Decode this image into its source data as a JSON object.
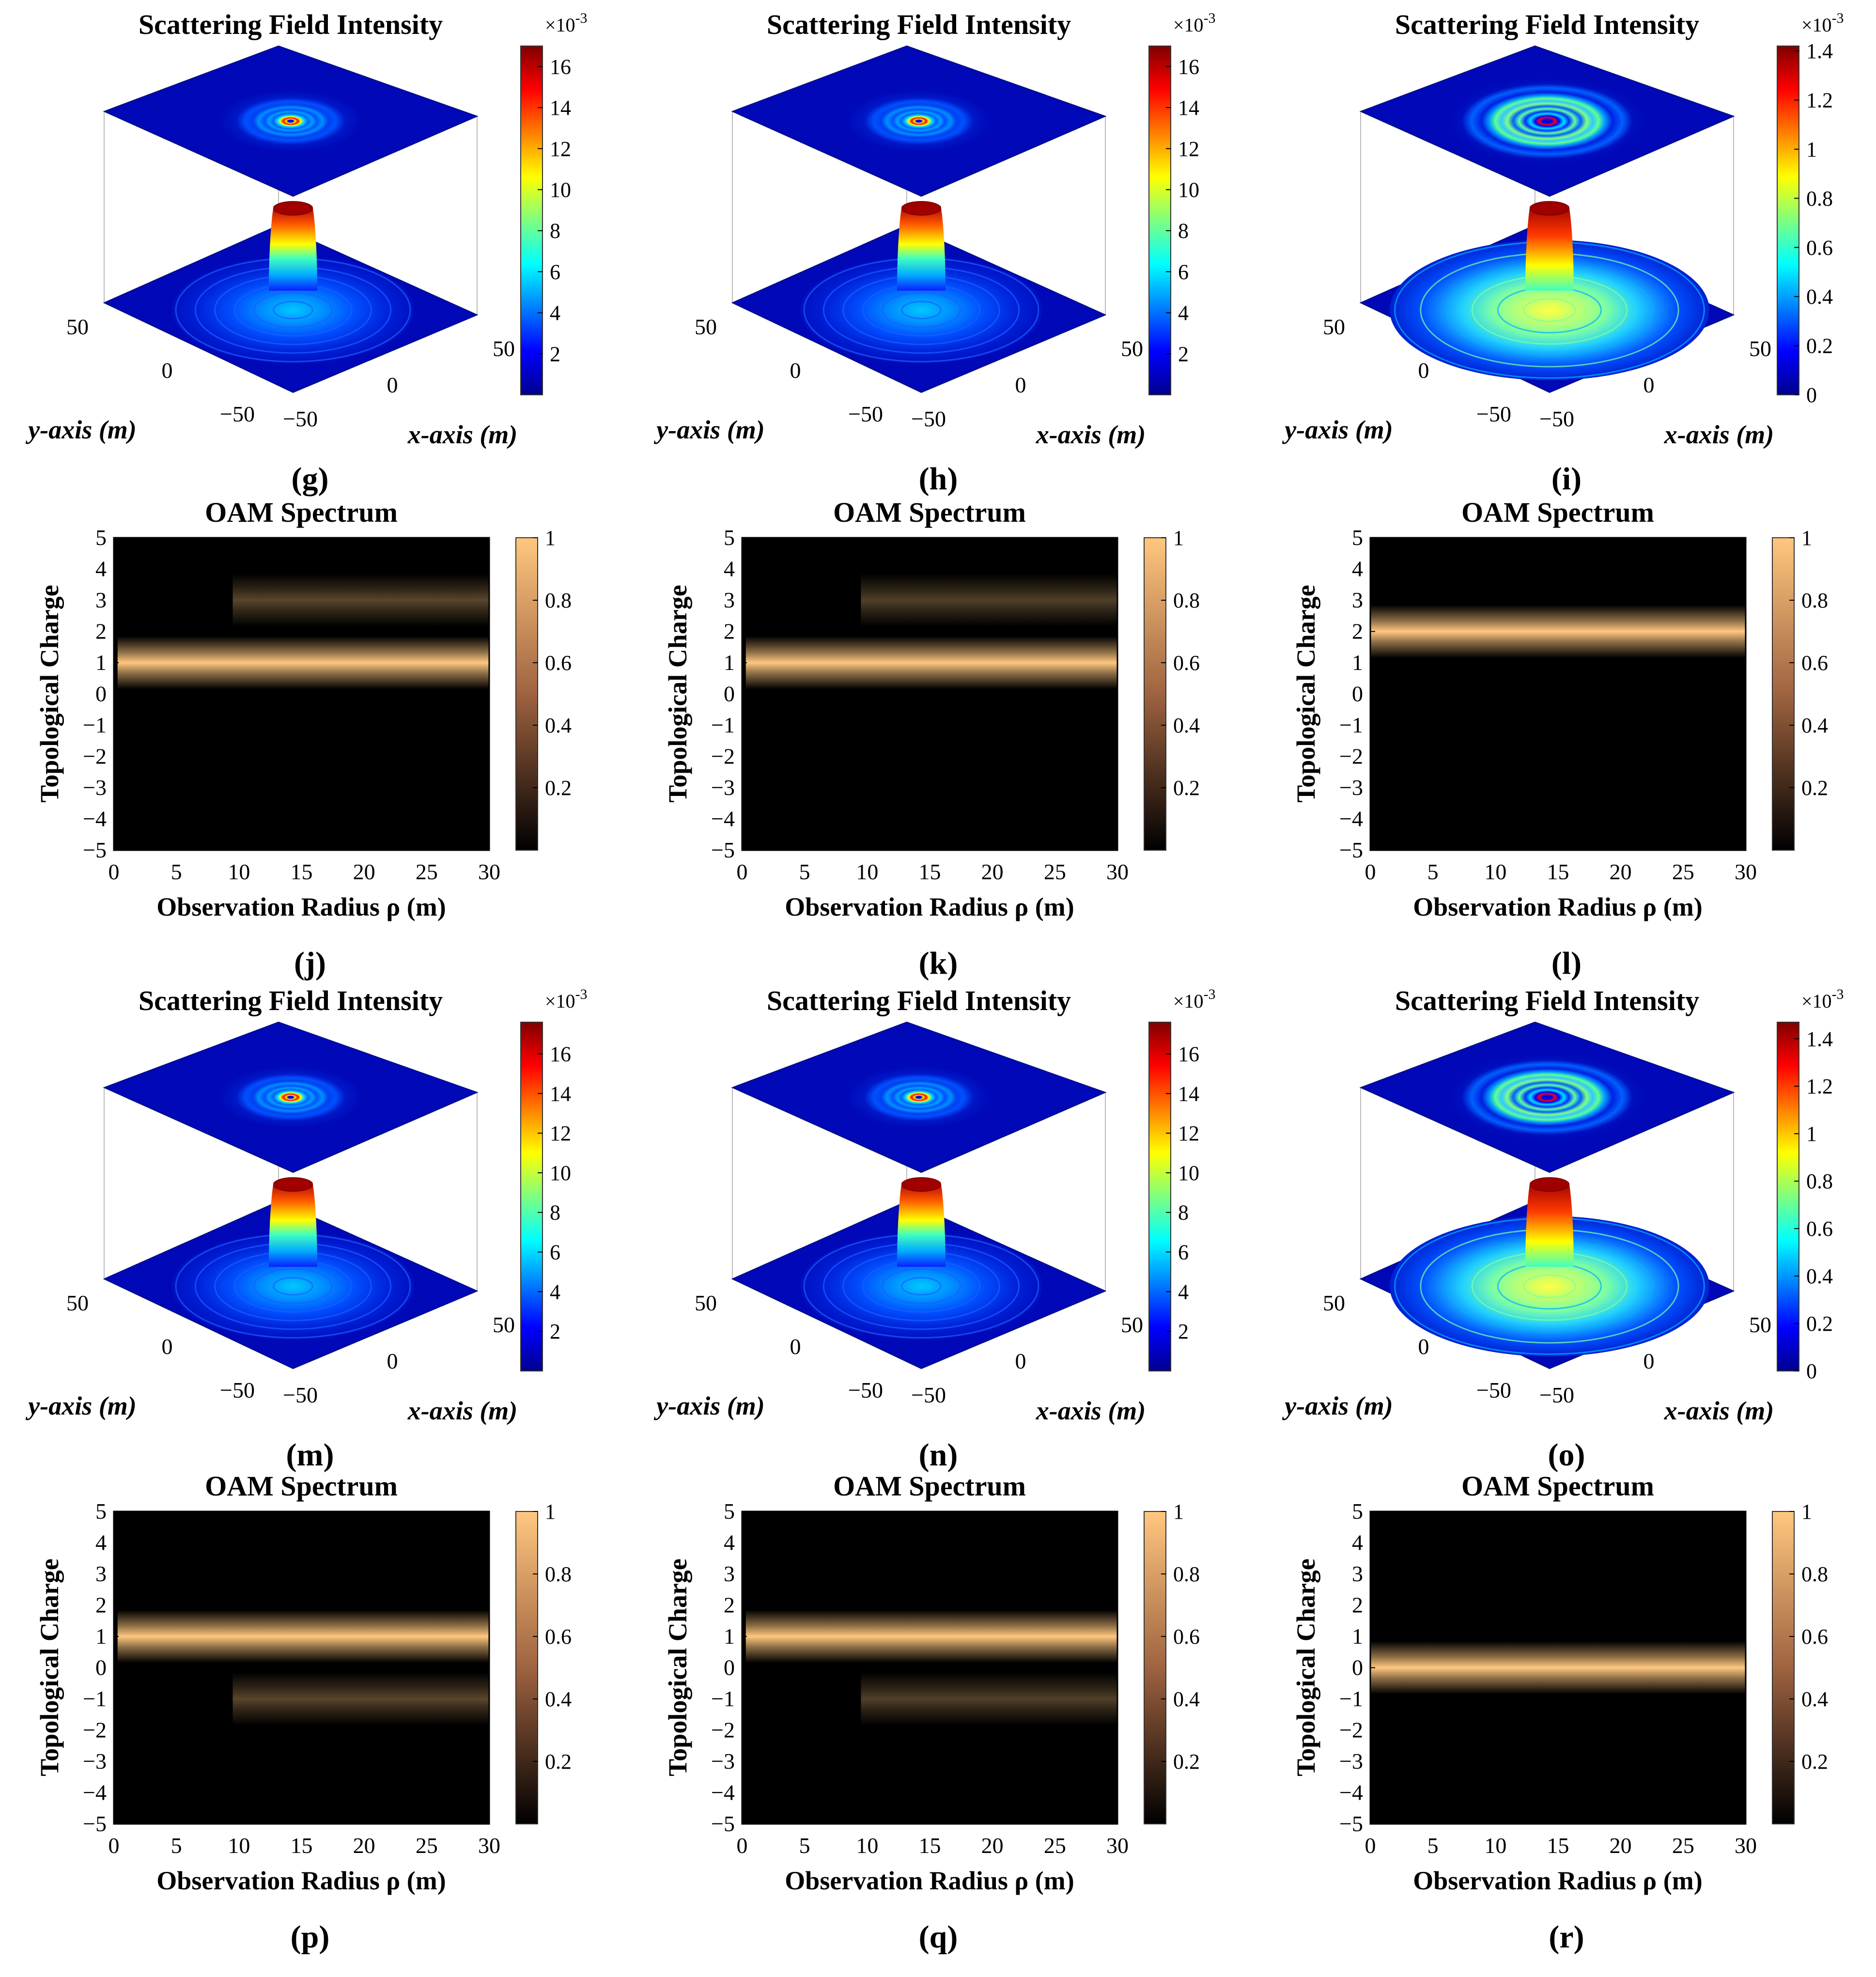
{
  "colors": {
    "background": "#ffffff",
    "jet_low": "#00008f",
    "jet_high": "#800000",
    "copper_low": "#000000",
    "copper_high": "#ffc77f"
  },
  "chart_data": [
    {
      "label": "(g)",
      "type": "surface3d",
      "title": "Scattering Field Intensity",
      "xlabel": "x-axis (m)",
      "ylabel": "y-axis (m)",
      "x_ticks": [
        "−50",
        "0",
        "50"
      ],
      "y_ticks": [
        "−50",
        "0",
        "50"
      ],
      "colorbar": {
        "exponent": "×10",
        "exponent_power": "-3",
        "ticks": [
          "2",
          "4",
          "6",
          "8",
          "10",
          "12",
          "14",
          "16"
        ],
        "range": [
          0,
          17
        ]
      },
      "rings": "weak"
    },
    {
      "label": "(h)",
      "type": "surface3d",
      "title": "Scattering Field Intensity",
      "xlabel": "x-axis (m)",
      "ylabel": "y-axis (m)",
      "x_ticks": [
        "−50",
        "0",
        "50"
      ],
      "y_ticks": [
        "−50",
        "0",
        "50"
      ],
      "colorbar": {
        "exponent": "×10",
        "exponent_power": "-3",
        "ticks": [
          "2",
          "4",
          "6",
          "8",
          "10",
          "12",
          "14",
          "16"
        ],
        "range": [
          0,
          17
        ]
      },
      "rings": "weak"
    },
    {
      "label": "(i)",
      "type": "surface3d",
      "title": "Scattering Field Intensity",
      "xlabel": "x-axis (m)",
      "ylabel": "y-axis (m)",
      "x_ticks": [
        "−50",
        "0",
        "50"
      ],
      "y_ticks": [
        "−50",
        "0",
        "50"
      ],
      "colorbar": {
        "exponent": "×10",
        "exponent_power": "-3",
        "ticks": [
          "0",
          "0.2",
          "0.4",
          "0.6",
          "0.8",
          "1",
          "1.2",
          "1.4"
        ],
        "range": [
          0,
          1.42
        ]
      },
      "rings": "strong"
    },
    {
      "label": "(j)",
      "type": "heatmap",
      "title": "OAM Spectrum",
      "xlabel": "Observation Radius ρ (m)",
      "ylabel": "Topological Charge",
      "x_ticks": [
        "0",
        "5",
        "10",
        "15",
        "20",
        "25",
        "30"
      ],
      "y_ticks": [
        "5",
        "4",
        "3",
        "2",
        "1",
        "0",
        "−1",
        "−2",
        "−3",
        "−4",
        "−5"
      ],
      "xlim": [
        0,
        30
      ],
      "ylim": [
        -5,
        5
      ],
      "colorbar": {
        "ticks": [
          "1",
          "0.8",
          "0.6",
          "0.4",
          "0.2"
        ],
        "range": [
          0,
          1
        ]
      },
      "bands": [
        {
          "charge": 1,
          "intensity": 1.0,
          "start_radius": 0.3
        },
        {
          "charge": 3,
          "intensity": 0.35,
          "start_radius": 9.5
        }
      ]
    },
    {
      "label": "(k)",
      "type": "heatmap",
      "title": "OAM Spectrum",
      "xlabel": "Observation Radius ρ (m)",
      "ylabel": "Topological Charge",
      "x_ticks": [
        "0",
        "5",
        "10",
        "15",
        "20",
        "25",
        "30"
      ],
      "y_ticks": [
        "5",
        "4",
        "3",
        "2",
        "1",
        "0",
        "−1",
        "−2",
        "−3",
        "−4",
        "−5"
      ],
      "xlim": [
        0,
        30
      ],
      "ylim": [
        -5,
        5
      ],
      "colorbar": {
        "ticks": [
          "1",
          "0.8",
          "0.6",
          "0.4",
          "0.2"
        ],
        "range": [
          0,
          1
        ]
      },
      "bands": [
        {
          "charge": 1,
          "intensity": 1.0,
          "start_radius": 0.3
        },
        {
          "charge": 3,
          "intensity": 0.32,
          "start_radius": 9.5
        }
      ]
    },
    {
      "label": "(l)",
      "type": "heatmap",
      "title": "OAM Spectrum",
      "xlabel": "Observation Radius ρ (m)",
      "ylabel": "Topological Charge",
      "x_ticks": [
        "0",
        "5",
        "10",
        "15",
        "20",
        "25",
        "30"
      ],
      "y_ticks": [
        "5",
        "4",
        "3",
        "2",
        "1",
        "0",
        "−1",
        "−2",
        "−3",
        "−4",
        "−5"
      ],
      "xlim": [
        0,
        30
      ],
      "ylim": [
        -5,
        5
      ],
      "colorbar": {
        "ticks": [
          "1",
          "0.8",
          "0.6",
          "0.4",
          "0.2"
        ],
        "range": [
          0,
          1
        ]
      },
      "bands": [
        {
          "charge": 2,
          "intensity": 1.0,
          "start_radius": 0
        }
      ]
    },
    {
      "label": "(m)",
      "type": "surface3d",
      "title": "Scattering Field Intensity",
      "xlabel": "x-axis (m)",
      "ylabel": "y-axis (m)",
      "x_ticks": [
        "−50",
        "0",
        "50"
      ],
      "y_ticks": [
        "−50",
        "0",
        "50"
      ],
      "colorbar": {
        "exponent": "×10",
        "exponent_power": "-3",
        "ticks": [
          "2",
          "4",
          "6",
          "8",
          "10",
          "12",
          "14",
          "16"
        ],
        "range": [
          0,
          17.6
        ]
      },
      "rings": "weak"
    },
    {
      "label": "(n)",
      "type": "surface3d",
      "title": "Scattering Field Intensity",
      "xlabel": "x-axis (m)",
      "ylabel": "y-axis (m)",
      "x_ticks": [
        "−50",
        "0",
        "50"
      ],
      "y_ticks": [
        "−50",
        "0",
        "50"
      ],
      "colorbar": {
        "exponent": "×10",
        "exponent_power": "-3",
        "ticks": [
          "2",
          "4",
          "6",
          "8",
          "10",
          "12",
          "14",
          "16"
        ],
        "range": [
          0,
          17.6
        ]
      },
      "rings": "weak"
    },
    {
      "label": "(o)",
      "type": "surface3d",
      "title": "Scattering Field Intensity",
      "xlabel": "x-axis (m)",
      "ylabel": "y-axis (m)",
      "x_ticks": [
        "−50",
        "0",
        "50"
      ],
      "y_ticks": [
        "−50",
        "0",
        "50"
      ],
      "colorbar": {
        "exponent": "×10",
        "exponent_power": "-3",
        "ticks": [
          "0",
          "0.2",
          "0.4",
          "0.6",
          "0.8",
          "1",
          "1.2",
          "1.4"
        ],
        "range": [
          0,
          1.47
        ]
      },
      "rings": "strong"
    },
    {
      "label": "(p)",
      "type": "heatmap",
      "title": "OAM Spectrum",
      "xlabel": "Observation Radius ρ (m)",
      "ylabel": "Topological Charge",
      "x_ticks": [
        "0",
        "5",
        "10",
        "15",
        "20",
        "25",
        "30"
      ],
      "y_ticks": [
        "5",
        "4",
        "3",
        "2",
        "1",
        "0",
        "−1",
        "−2",
        "−3",
        "−4",
        "−5"
      ],
      "xlim": [
        0,
        30
      ],
      "ylim": [
        -5,
        5
      ],
      "colorbar": {
        "ticks": [
          "1",
          "0.8",
          "0.6",
          "0.4",
          "0.2"
        ],
        "range": [
          0,
          1
        ]
      },
      "bands": [
        {
          "charge": 1,
          "intensity": 1.0,
          "start_radius": 0.3
        },
        {
          "charge": -1,
          "intensity": 0.35,
          "start_radius": 9.5
        }
      ]
    },
    {
      "label": "(q)",
      "type": "heatmap",
      "title": "OAM Spectrum",
      "xlabel": "Observation Radius ρ (m)",
      "ylabel": "Topological Charge",
      "x_ticks": [
        "0",
        "5",
        "10",
        "15",
        "20",
        "25",
        "30"
      ],
      "y_ticks": [
        "5",
        "4",
        "3",
        "2",
        "1",
        "0",
        "−1",
        "−2",
        "−3",
        "−4",
        "−5"
      ],
      "xlim": [
        0,
        30
      ],
      "ylim": [
        -5,
        5
      ],
      "colorbar": {
        "ticks": [
          "1",
          "0.8",
          "0.6",
          "0.4",
          "0.2"
        ],
        "range": [
          0,
          1
        ]
      },
      "bands": [
        {
          "charge": 1,
          "intensity": 1.0,
          "start_radius": 0.3
        },
        {
          "charge": -1,
          "intensity": 0.32,
          "start_radius": 9.5
        }
      ]
    },
    {
      "label": "(r)",
      "type": "heatmap",
      "title": "OAM Spectrum",
      "xlabel": "Observation Radius ρ (m)",
      "ylabel": "Topological Charge",
      "x_ticks": [
        "0",
        "5",
        "10",
        "15",
        "20",
        "25",
        "30"
      ],
      "y_ticks": [
        "5",
        "4",
        "3",
        "2",
        "1",
        "0",
        "−1",
        "−2",
        "−3",
        "−4",
        "−5"
      ],
      "xlim": [
        0,
        30
      ],
      "ylim": [
        -5,
        5
      ],
      "colorbar": {
        "ticks": [
          "1",
          "0.8",
          "0.6",
          "0.4",
          "0.2"
        ],
        "range": [
          0,
          1
        ]
      },
      "bands": [
        {
          "charge": 0,
          "intensity": 1.0,
          "start_radius": 0
        }
      ]
    }
  ]
}
